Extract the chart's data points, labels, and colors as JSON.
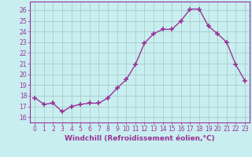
{
  "x": [
    0,
    1,
    2,
    3,
    4,
    5,
    6,
    7,
    8,
    9,
    10,
    11,
    12,
    13,
    14,
    15,
    16,
    17,
    18,
    19,
    20,
    21,
    22,
    23
  ],
  "y": [
    17.8,
    17.2,
    17.3,
    16.5,
    17.0,
    17.2,
    17.3,
    17.3,
    17.8,
    18.7,
    19.5,
    20.9,
    22.9,
    23.8,
    24.2,
    24.2,
    25.0,
    26.1,
    26.1,
    24.5,
    23.8,
    23.0,
    20.9,
    19.4
  ],
  "line_color": "#993399",
  "marker": "+",
  "marker_size": 4,
  "linewidth": 1.0,
  "xlabel": "Windchill (Refroidissement éolien,°C)",
  "xlabel_fontsize": 6.5,
  "ylabel_ticks": [
    16,
    17,
    18,
    19,
    20,
    21,
    22,
    23,
    24,
    25,
    26
  ],
  "ylim": [
    15.5,
    26.8
  ],
  "xlim": [
    -0.5,
    23.5
  ],
  "bg_color": "#c8eef0",
  "grid_color": "#aacccc",
  "tick_fontsize": 5.5,
  "title": ""
}
